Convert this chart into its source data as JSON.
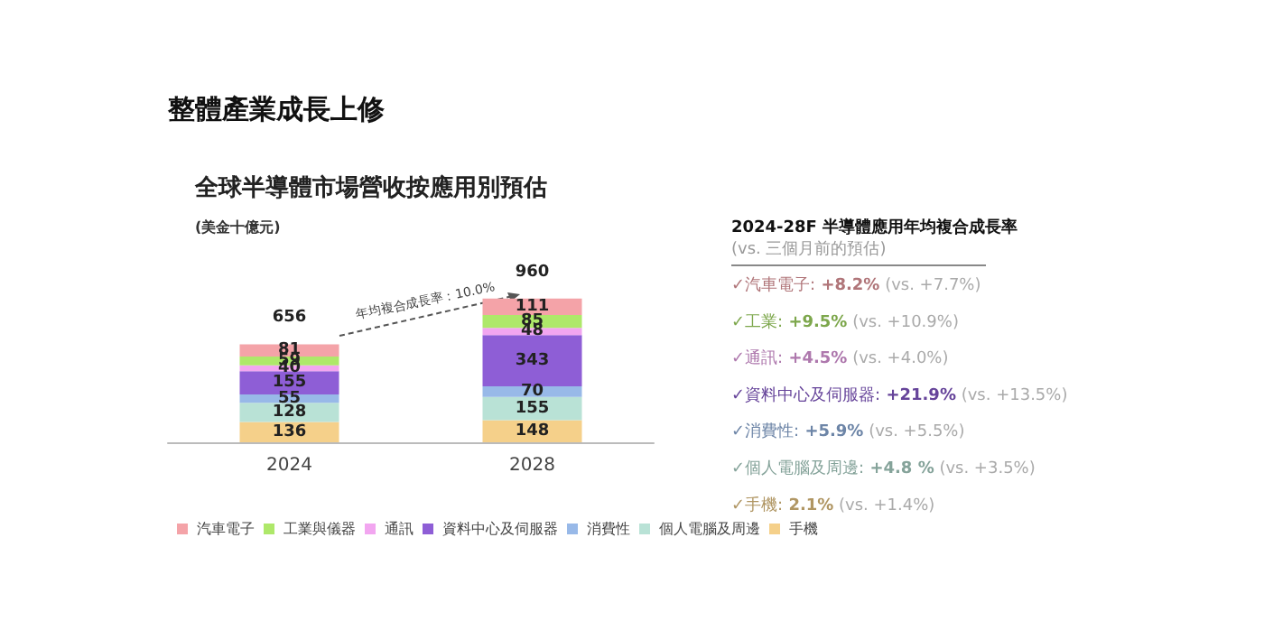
{
  "chart_data": {
    "type": "bar",
    "title": "整體產業成長上修",
    "subtitle": "全球半導體市場營收按應用別預估",
    "ylabel": "(美金十億元)",
    "categories": [
      "2024",
      "2028"
    ],
    "stacked": true,
    "data_labels": true,
    "totals": [
      "656",
      "960"
    ],
    "legend": "bottom",
    "series": [
      {
        "name": "手機",
        "color": "#f5d08a",
        "values": [
          136,
          148
        ]
      },
      {
        "name": "個人電腦及周邊",
        "color": "#b9e2d6",
        "values": [
          128,
          155
        ]
      },
      {
        "name": "消費性",
        "color": "#98b9e8",
        "values": [
          55,
          70
        ]
      },
      {
        "name": "資料中心及伺服器",
        "color": "#8e5ed6",
        "values": [
          155,
          343
        ]
      },
      {
        "name": "通訊",
        "color": "#f2a6f0",
        "values": [
          40,
          48
        ]
      },
      {
        "name": "工業與儀器",
        "color": "#aee86a",
        "values": [
          59,
          85
        ]
      },
      {
        "name": "汽車電子",
        "color": "#f4a3a8",
        "values": [
          81,
          111
        ]
      }
    ],
    "annotations": [
      "年均複合成長率：10.0%",
      "2024-28F 半導體應用年均複合成長率",
      "(vs. 三個月前的預估)",
      "✓汽車電子: +8.2% (vs. +7.7%)",
      "✓工業: +9.5% (vs. +10.9%)",
      "✓通訊: +4.5% (vs. +4.0%)",
      "✓資料中心及伺服器: +21.9% (vs. +13.5%)",
      "✓消費性: +5.9% (vs. +5.5%)",
      "✓個人電腦及周邊: +4.8 % (vs. +3.5%)",
      "✓手機: 2.1% (vs. +1.4%)"
    ]
  }
}
